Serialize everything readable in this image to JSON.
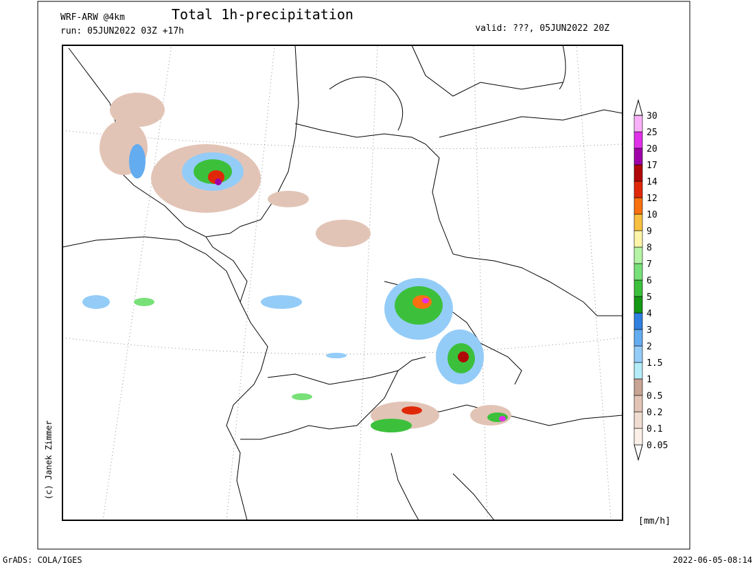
{
  "header": {
    "model": "WRF-ARW @4km",
    "title": "Total 1h-precipitation",
    "run": "run: 05JUN2022 03Z +17h",
    "valid": "valid: ???, 05JUN2022 20Z"
  },
  "copyright": "(c) Janek Zimmer",
  "colorbar": {
    "unit": "[mm/h]",
    "labels": [
      "0.05",
      "0.1",
      "0.2",
      "0.5",
      "1",
      "1.5",
      "2",
      "3",
      "4",
      "5",
      "6",
      "7",
      "8",
      "9",
      "10",
      "12",
      "14",
      "17",
      "20",
      "25",
      "30"
    ],
    "colors": [
      "#ffffff",
      "#fbf0e8",
      "#f0dcd0",
      "#e2c4b6",
      "#c8a494",
      "#b4ecf8",
      "#94ccf8",
      "#64acf0",
      "#3080e0",
      "#149814",
      "#3cc03c",
      "#78e078",
      "#b4f4a4",
      "#fcf4a8",
      "#f8c040",
      "#f87010",
      "#e02808",
      "#b00808",
      "#a000a8",
      "#e030e8",
      "#f8b0f8",
      "#ffffff"
    ]
  },
  "footer": {
    "software": "GrADS: COLA/IGES",
    "timestamp": "2022-06-05-08:14"
  }
}
